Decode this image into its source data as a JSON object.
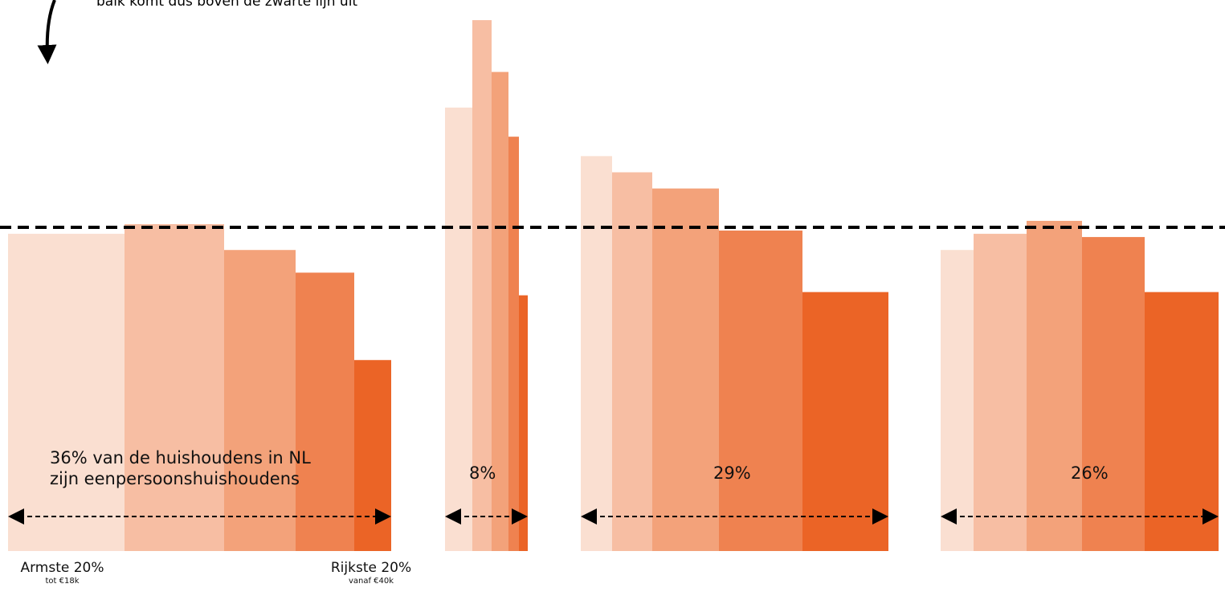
{
  "annotation": "balk komt dus boven de zwarte lijn uit",
  "x_labels": {
    "left": {
      "main": "Armste 20%",
      "sub": "tot €18k"
    },
    "right": {
      "main": "Rijkste 20%",
      "sub": "vanaf €40k"
    }
  },
  "colors": [
    "#fadfd1",
    "#f7bea3",
    "#f3a27a",
    "#ef8250",
    "#eb6426"
  ],
  "chart_data": {
    "type": "bar",
    "reference_line": 100,
    "ylim": [
      0,
      250
    ],
    "groups": [
      {
        "label": "36% van de huishoudens in NL\nzijn eenpersoonshuishoudens",
        "share_percent": 36,
        "categories": [
          "Armste 20%",
          "",
          "",
          "",
          "Rijkste 20%"
        ],
        "widths": [
          145,
          124,
          89,
          73,
          46
        ],
        "values": [
          98,
          101,
          93,
          86,
          59
        ]
      },
      {
        "label": "8%",
        "share_percent": 8,
        "categories": [
          "",
          "",
          "",
          "",
          ""
        ],
        "widths": [
          34,
          24,
          21,
          13,
          11
        ],
        "values": [
          137,
          164,
          148,
          128,
          79
        ]
      },
      {
        "label": "29%",
        "share_percent": 29,
        "categories": [
          "",
          "",
          "",
          "",
          ""
        ],
        "widths": [
          39,
          50,
          83,
          104,
          107
        ],
        "values": [
          122,
          117,
          112,
          99,
          80
        ]
      },
      {
        "label": "26%",
        "share_percent": 26,
        "categories": [
          "",
          "",
          "",
          "",
          ""
        ],
        "widths": [
          41,
          66,
          69,
          78,
          92
        ],
        "values": [
          93,
          98,
          102,
          97,
          80
        ]
      }
    ]
  }
}
